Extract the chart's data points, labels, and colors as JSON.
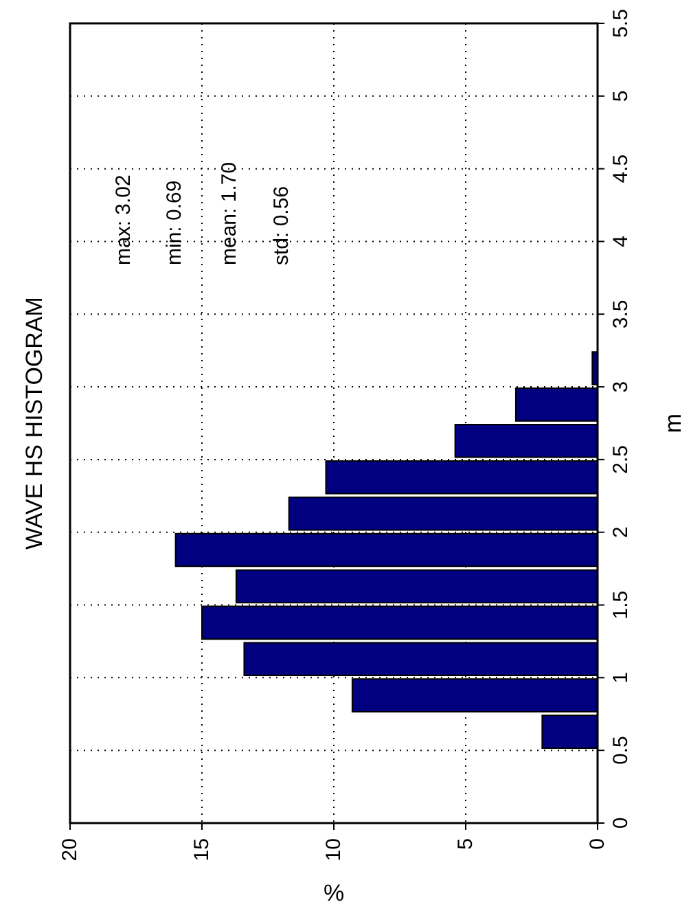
{
  "chart_data": {
    "type": "histogram",
    "orientation": "horizontal",
    "title": "WAVE HS HISTOGRAM",
    "xlabel": "%",
    "ylabel": "m",
    "annotations": [
      "max: 3.02",
      "min: 0.69",
      "mean: 1.70",
      "std: 0.56"
    ],
    "bins": [
      0.5,
      0.75,
      1.0,
      1.25,
      1.5,
      1.75,
      2.0,
      2.25,
      2.5,
      2.75,
      3.0,
      3.25
    ],
    "values": [
      2.1,
      9.3,
      13.4,
      15.0,
      13.7,
      16.0,
      11.7,
      10.3,
      5.4,
      3.1,
      0.2
    ],
    "color": "#000080",
    "xlim": [
      20,
      0
    ],
    "xticks": [
      20,
      15,
      10,
      5,
      0
    ],
    "ylim": [
      0,
      5.5
    ],
    "yticks": [
      0,
      0.5,
      1,
      1.5,
      2,
      2.5,
      3,
      3.5,
      4,
      4.5,
      5,
      5.5
    ],
    "grid": true
  }
}
